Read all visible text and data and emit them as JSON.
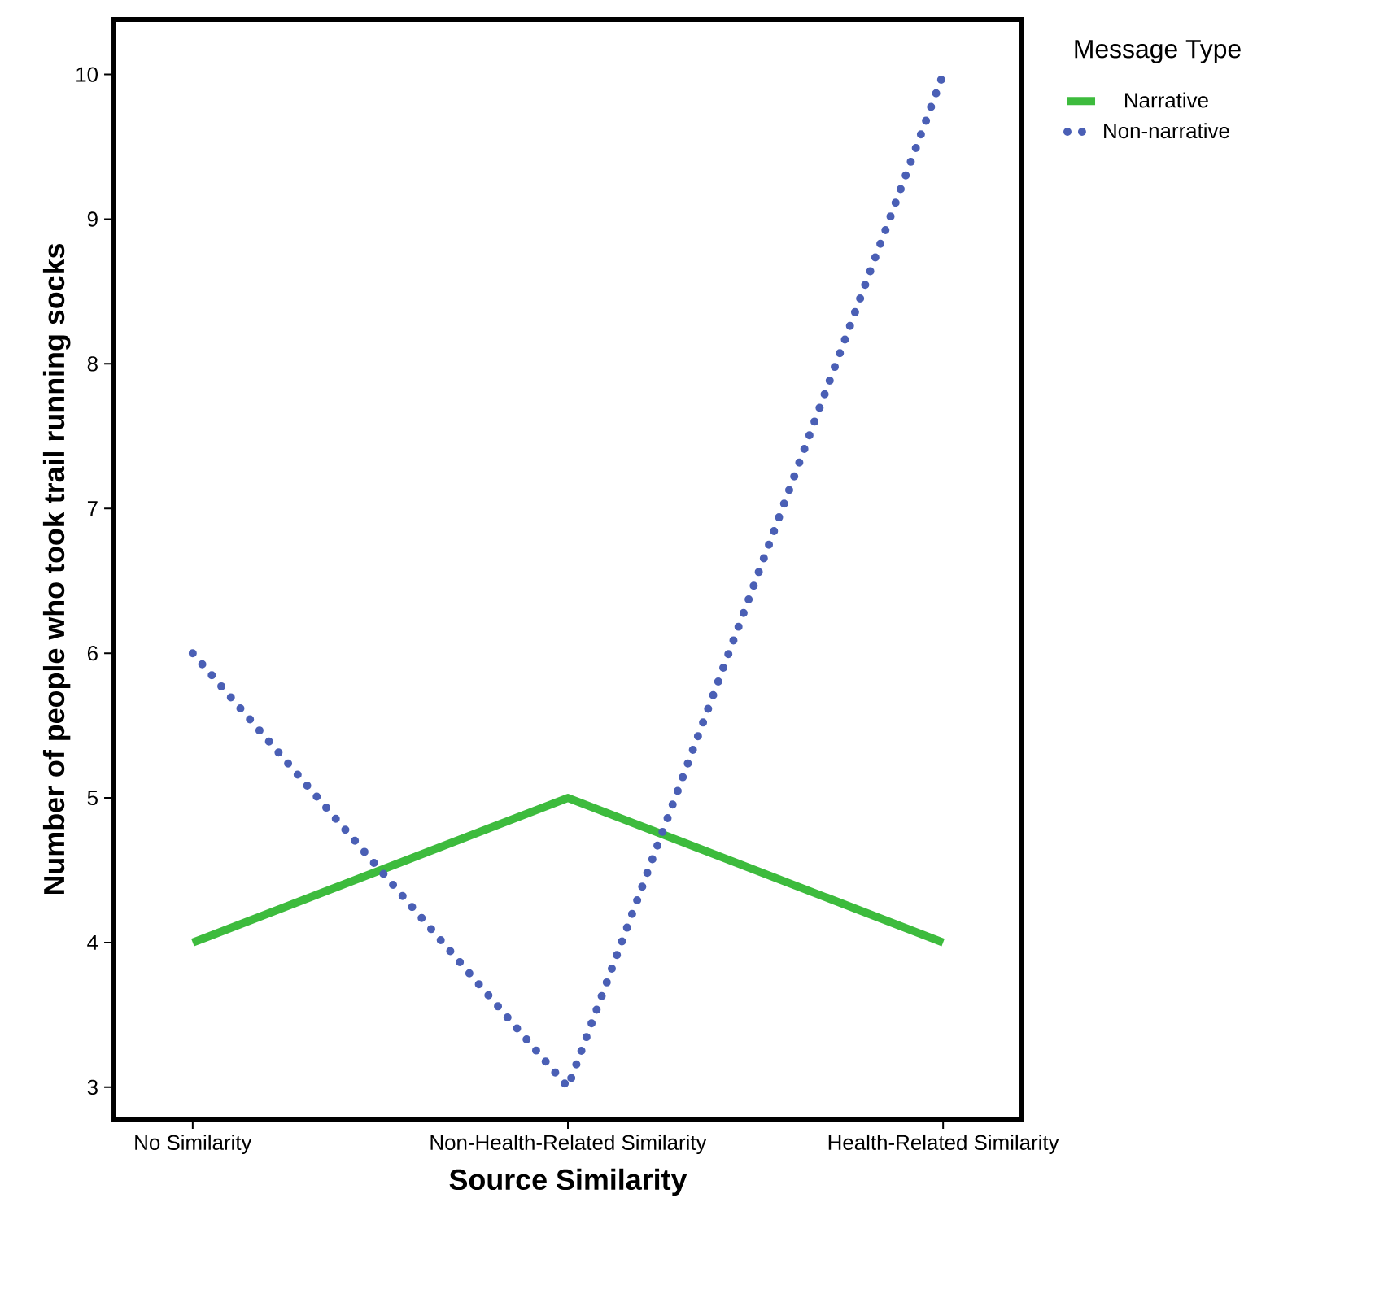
{
  "chart_data": {
    "type": "line",
    "xlabel": "Source Similarity",
    "ylabel": "Number of people who took trail running socks",
    "legend_title": "Message Type",
    "legend": "top right",
    "categories": [
      "No Similarity",
      "Non-Health-Related Similarity",
      "Health-Related Similarity"
    ],
    "ylim": [
      2.78,
      10.38
    ],
    "yticks": [
      3,
      4,
      5,
      6,
      7,
      8,
      9,
      10
    ],
    "series": [
      {
        "name": "Narrative",
        "color": "#3dbb3d",
        "line_style": "solid",
        "values": [
          4,
          5,
          4
        ]
      },
      {
        "name": "Non-narrative",
        "color": "#4a5fb5",
        "line_style": "dotted",
        "values": [
          6,
          3,
          10
        ]
      }
    ]
  }
}
